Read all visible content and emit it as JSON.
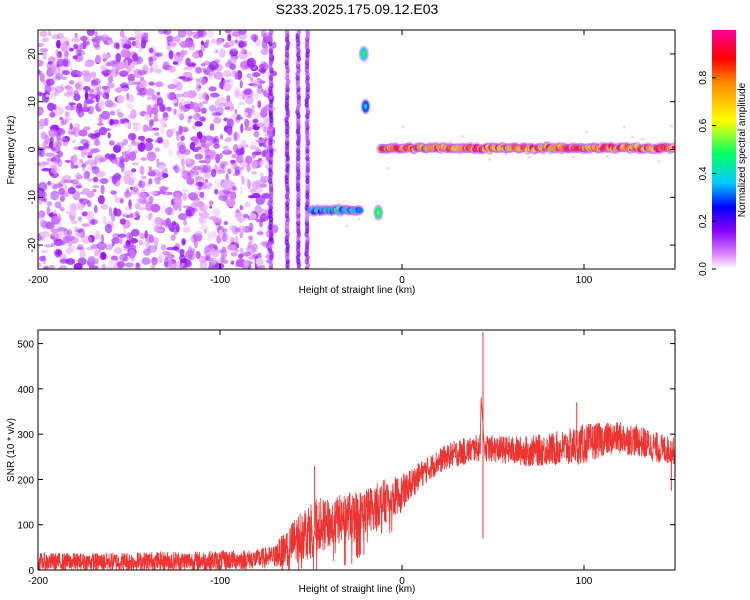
{
  "figure_title": "S233.2025.175.09.12.E03",
  "colors": {
    "snr_line": "#ee3333",
    "axis": "#000000",
    "background": "#ffffff",
    "colormap": [
      "#f2f2f2",
      "#dd88ff",
      "#8800ff",
      "#0000ff",
      "#00ccff",
      "#00ff66",
      "#ffff00",
      "#ff9900",
      "#ff0000",
      "#ff0099"
    ]
  },
  "chart_data": [
    {
      "type": "heatmap",
      "title": "S233.2025.175.09.12.E03",
      "xlabel": "Height of straight line (km)",
      "ylabel": "Frequency (Hz)",
      "xlim": [
        -200,
        150
      ],
      "ylim": [
        -25,
        25
      ],
      "xticks": [
        -200,
        -100,
        0,
        100
      ],
      "yticks": [
        -20,
        -10,
        0,
        10,
        20
      ],
      "xtick_labels": [
        "-200",
        "-100",
        "0",
        "100"
      ],
      "ytick_labels": [
        "-20",
        "-10",
        "0",
        "10",
        "20"
      ],
      "colorbar": {
        "label": "Normalized spectral amplitude",
        "range": [
          0,
          1
        ],
        "ticks": [
          0.0,
          0.2,
          0.4,
          0.6,
          0.8
        ],
        "tick_labels": [
          "0.0",
          "0.2",
          "0.4",
          "0.6",
          "0.8"
        ]
      },
      "features": [
        {
          "description": "diffuse noise",
          "x_range": [
            -200,
            -70
          ],
          "y_range": [
            -25,
            25
          ],
          "amplitude": 0.15
        },
        {
          "description": "vertical streaks",
          "x_values": [
            -72,
            -63,
            -57,
            -52
          ],
          "y_range": [
            -25,
            25
          ],
          "amplitude": 0.15
        },
        {
          "description": "signal segment",
          "x_range": [
            -50,
            -23
          ],
          "frequency": -12.7,
          "amplitude": 0.4
        },
        {
          "description": "signal blob",
          "x": -21,
          "frequency": 20,
          "amplitude": 0.4
        },
        {
          "description": "signal blob",
          "x": -20,
          "frequency": 9,
          "amplitude": 0.3
        },
        {
          "description": "signal blob",
          "x": -13,
          "frequency": -13.2,
          "amplitude": 0.45
        },
        {
          "description": "signal line",
          "x_range": [
            -12,
            150
          ],
          "frequency": 0.3,
          "amplitude": 0.85
        }
      ]
    },
    {
      "type": "line",
      "xlabel": "Height of straight line (km)",
      "ylabel": "SNR (10 * v/v)",
      "xlim": [
        -200,
        150
      ],
      "ylim": [
        0,
        530
      ],
      "xticks": [
        -200,
        -100,
        0,
        100
      ],
      "yticks": [
        0,
        100,
        200,
        300,
        400,
        500
      ],
      "xtick_labels": [
        "-200",
        "-100",
        "0",
        "100"
      ],
      "ytick_labels": [
        "0",
        "100",
        "200",
        "300",
        "400",
        "500"
      ],
      "series": [
        {
          "x": [
            -200,
            -170,
            -140,
            -110,
            -80,
            -70,
            -60,
            -55,
            -50,
            -45,
            -40,
            -35,
            -30,
            -25,
            -20,
            -15,
            -10,
            -5,
            0,
            5,
            10,
            15,
            20,
            25,
            30,
            35,
            40,
            43,
            44,
            45,
            50,
            60,
            70,
            80,
            90,
            100,
            110,
            120,
            130,
            140,
            150
          ],
          "y": [
            18,
            18,
            19,
            20,
            24,
            30,
            60,
            80,
            90,
            100,
            100,
            110,
            120,
            120,
            130,
            140,
            150,
            160,
            170,
            190,
            210,
            225,
            240,
            250,
            258,
            262,
            268,
            270,
            525,
            270,
            268,
            264,
            262,
            266,
            270,
            278,
            288,
            292,
            285,
            270,
            262
          ],
          "noise_band": [
            20,
            20,
            22,
            22,
            22,
            25,
            50,
            60,
            65,
            60,
            55,
            55,
            55,
            55,
            50,
            50,
            50,
            45,
            40,
            35,
            30,
            28,
            28,
            28,
            30,
            30,
            30,
            30,
            0,
            30,
            30,
            32,
            34,
            36,
            40,
            45,
            38,
            36,
            35,
            34,
            30
          ],
          "spikes": [
            {
              "x": 44.5,
              "y": 525
            },
            {
              "x": 44.5,
              "y": 70
            },
            {
              "x": -48,
              "y": 230
            },
            {
              "x": 96,
              "y": 370
            },
            {
              "x": 148,
              "y": 175
            }
          ]
        }
      ]
    }
  ]
}
